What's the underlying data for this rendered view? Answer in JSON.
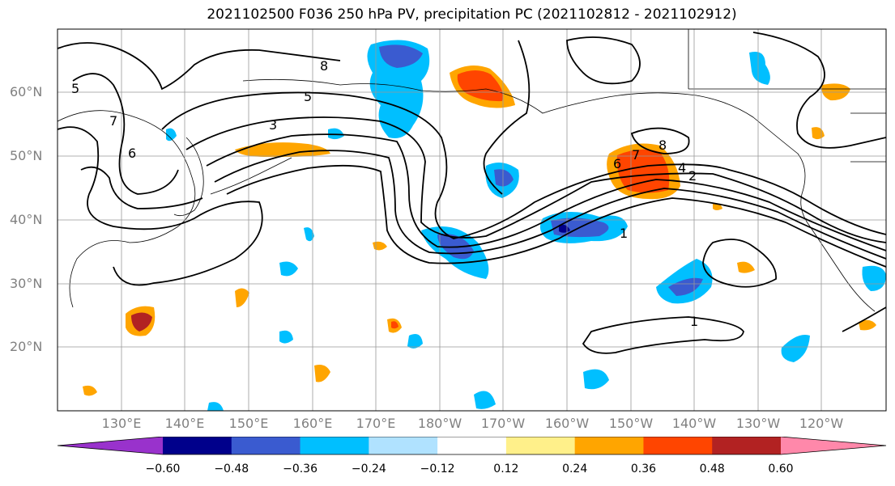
{
  "title": "2021102500 F036 250 hPa PV, precipitation PC (2021102812 - 2021102912)",
  "lat_labels": [
    "60°N",
    "50°N",
    "40°N",
    "30°N",
    "20°N"
  ],
  "lon_labels": [
    "130°E",
    "140°E",
    "150°E",
    "160°E",
    "170°E",
    "180°W",
    "170°W",
    "160°W",
    "150°W",
    "140°W",
    "130°W",
    "120°W"
  ],
  "colorbar": {
    "ticks": [
      "−0.60",
      "−0.48",
      "−0.36",
      "−0.24",
      "−0.12",
      "0.12",
      "0.24",
      "0.36",
      "0.48",
      "0.60"
    ],
    "colors": [
      "#9932cc",
      "#00008b",
      "#3a5bd0",
      "#00bfff",
      "#b0e2ff",
      "#ffffff",
      "#fff08a",
      "#ffa500",
      "#ff4500",
      "#b22222",
      "#ff88aa"
    ]
  },
  "contour_labels": [
    "3",
    "2",
    "4",
    "5",
    "6",
    "7",
    "8",
    "1"
  ]
}
